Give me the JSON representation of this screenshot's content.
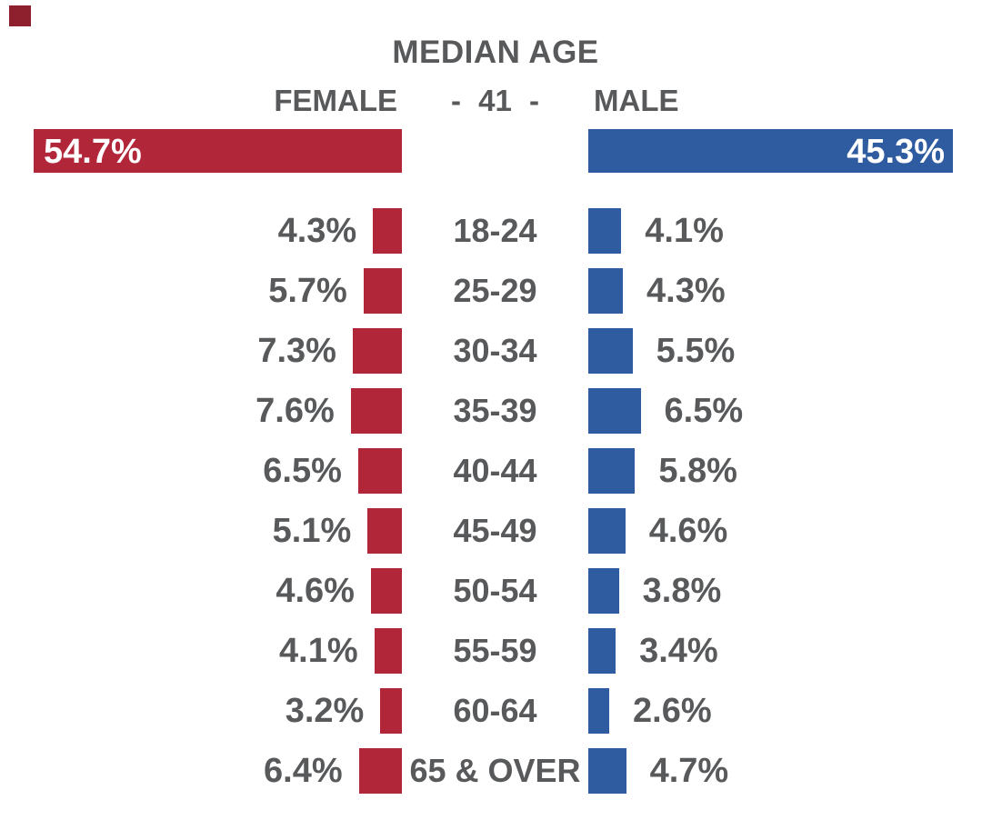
{
  "title": "MEDIAN AGE",
  "header": {
    "female_label": "FEMALE",
    "median_display": "- 41 -",
    "male_label": "MALE",
    "female_total": "54.7%",
    "male_total": "45.3%"
  },
  "colors": {
    "female": "#B2263A",
    "male": "#2F5BA0",
    "text_gray": "#58595B",
    "bar_label_white": "#FFFFFF",
    "corner_mark": "#8E1F2C"
  },
  "rows": [
    {
      "female": "4.3%",
      "age": "18-24",
      "male": "4.1%"
    },
    {
      "female": "5.7%",
      "age": "25-29",
      "male": "4.3%"
    },
    {
      "female": "7.3%",
      "age": "30-34",
      "male": "5.5%"
    },
    {
      "female": "7.6%",
      "age": "35-39",
      "male": "6.5%"
    },
    {
      "female": "6.5%",
      "age": "40-44",
      "male": "5.8%"
    },
    {
      "female": "5.1%",
      "age": "45-49",
      "male": "4.6%"
    },
    {
      "female": "4.6%",
      "age": "50-54",
      "male": "3.8%"
    },
    {
      "female": "4.1%",
      "age": "55-59",
      "male": "3.4%"
    },
    {
      "female": "3.2%",
      "age": "60-64",
      "male": "2.6%"
    },
    {
      "female": "6.4%",
      "age": "65 & OVER",
      "male": "4.7%"
    }
  ],
  "chart_data": {
    "type": "bar",
    "subtype": "population-pyramid",
    "title": "MEDIAN AGE",
    "median_age": 41,
    "categories": [
      "18-24",
      "25-29",
      "30-34",
      "35-39",
      "40-44",
      "45-49",
      "50-54",
      "55-59",
      "60-64",
      "65 & OVER"
    ],
    "series": [
      {
        "name": "FEMALE",
        "total_pct": 54.7,
        "color": "#B2263A",
        "values": [
          4.3,
          5.7,
          7.3,
          7.6,
          6.5,
          5.1,
          4.6,
          4.1,
          3.2,
          6.4
        ]
      },
      {
        "name": "MALE",
        "total_pct": 45.3,
        "color": "#2F5BA0",
        "values": [
          4.1,
          4.3,
          5.5,
          6.5,
          5.8,
          4.6,
          3.8,
          3.4,
          2.6,
          4.7
        ]
      }
    ],
    "value_unit": "%",
    "legend_position": "top",
    "grid": false,
    "orientation": "horizontal-mirrored"
  }
}
